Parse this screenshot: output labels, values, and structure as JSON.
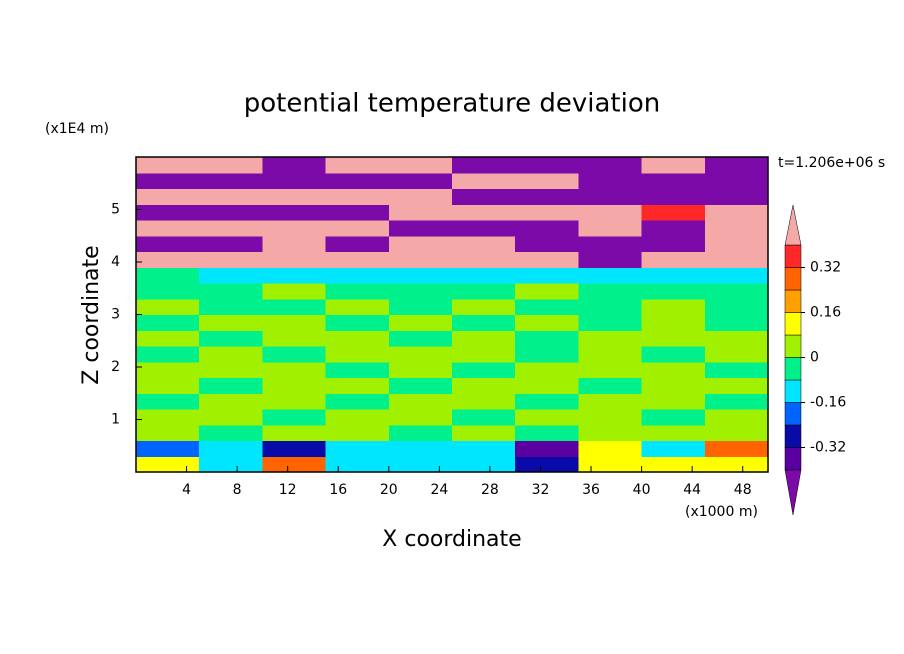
{
  "chart_data": {
    "type": "contour",
    "title": "potential temperature deviation",
    "x_label": "X coordinate",
    "y_label": "Z coordinate",
    "x_unit_label": "(x1000 m)",
    "y_unit_label": "(x1E4 m)",
    "annotation": "t=1.206e+06 s",
    "x": [
      2.5,
      7.5,
      12.5,
      17.5,
      22.5,
      27.5,
      32.5,
      37.5,
      42.5,
      47.5
    ],
    "y": [
      0.15,
      0.45,
      0.75,
      1.05,
      1.35,
      1.65,
      1.95,
      2.25,
      2.55,
      2.85,
      3.15,
      3.45,
      3.75,
      4.05,
      4.35,
      4.65,
      4.95,
      5.25,
      5.55,
      5.85
    ],
    "values": [
      [
        0.1,
        -0.1,
        0.3,
        -0.1,
        -0.1,
        -0.1,
        -0.25,
        0.12,
        0.1,
        0.15
      ],
      [
        -0.2,
        -0.1,
        -0.3,
        -0.1,
        -0.1,
        -0.1,
        -0.35,
        0.1,
        -0.1,
        0.3
      ],
      [
        0.04,
        -0.04,
        0.04,
        0.04,
        -0.04,
        0.04,
        -0.04,
        0.04,
        0.04,
        0.04
      ],
      [
        0.04,
        0.04,
        -0.04,
        0.04,
        0.04,
        -0.04,
        0.04,
        0.04,
        -0.04,
        0.04
      ],
      [
        -0.04,
        0.04,
        0.04,
        -0.04,
        0.04,
        0.04,
        -0.04,
        0.04,
        0.04,
        -0.04
      ],
      [
        0.04,
        -0.04,
        0.04,
        0.04,
        -0.04,
        0.04,
        0.04,
        -0.04,
        0.04,
        0.04
      ],
      [
        0.04,
        0.04,
        0.04,
        -0.04,
        0.04,
        -0.04,
        0.04,
        0.04,
        0.04,
        -0.04
      ],
      [
        -0.04,
        0.04,
        -0.04,
        0.04,
        0.04,
        0.04,
        -0.04,
        0.04,
        -0.04,
        0.04
      ],
      [
        0.04,
        -0.04,
        0.04,
        0.04,
        -0.04,
        0.04,
        -0.04,
        0.04,
        0.04,
        0.04
      ],
      [
        -0.04,
        0.04,
        0.04,
        -0.04,
        0.04,
        -0.04,
        0.04,
        -0.04,
        0.04,
        -0.04
      ],
      [
        0.04,
        -0.04,
        -0.04,
        0.04,
        -0.04,
        0.04,
        -0.04,
        -0.04,
        0.04,
        -0.04
      ],
      [
        -0.04,
        -0.04,
        0.04,
        -0.04,
        -0.04,
        -0.04,
        0.04,
        -0.04,
        -0.04,
        -0.04
      ],
      [
        -0.04,
        -0.1,
        -0.1,
        -0.1,
        -0.1,
        -0.1,
        -0.1,
        -0.1,
        -0.1,
        -0.1
      ],
      [
        0.5,
        0.5,
        0.5,
        0.5,
        0.5,
        0.5,
        0.5,
        -0.5,
        0.5,
        0.5
      ],
      [
        -0.5,
        -0.5,
        0.5,
        -0.5,
        0.5,
        0.5,
        -0.5,
        -0.5,
        -0.5,
        0.5
      ],
      [
        0.5,
        0.5,
        0.5,
        0.5,
        -0.5,
        -0.5,
        -0.5,
        0.5,
        -0.5,
        0.5
      ],
      [
        -0.5,
        -0.5,
        -0.5,
        -0.5,
        0.5,
        0.5,
        0.5,
        0.5,
        0.36,
        0.5
      ],
      [
        0.5,
        0.5,
        0.5,
        0.5,
        0.5,
        -0.5,
        -0.5,
        -0.5,
        -0.5,
        -0.5
      ],
      [
        -0.5,
        -0.5,
        -0.5,
        -0.5,
        -0.5,
        0.5,
        0.5,
        -0.5,
        -0.5,
        -0.5
      ],
      [
        0.5,
        0.5,
        -0.5,
        0.5,
        0.5,
        -0.5,
        -0.5,
        -0.5,
        0.5,
        -0.5
      ]
    ],
    "xlim": [
      0,
      50
    ],
    "ylim": [
      0,
      6
    ],
    "xticks": [
      4,
      8,
      12,
      16,
      20,
      24,
      28,
      32,
      36,
      40,
      44,
      48
    ],
    "yticks": [
      1,
      2,
      3,
      4,
      5
    ],
    "levels": [
      -0.4,
      -0.32,
      -0.24,
      -0.16,
      -0.08,
      0,
      0.08,
      0.16,
      0.24,
      0.32,
      0.4
    ],
    "colors": [
      "#7b0aa8",
      "#5a00a0",
      "#0a0aa8",
      "#0064ff",
      "#00e6ff",
      "#00f08c",
      "#a0f000",
      "#ffff00",
      "#ffa000",
      "#ff6400",
      "#ff2828",
      "#f5a8a8"
    ],
    "colorbar_ticks": [
      0.32,
      0.16,
      0,
      -0.16,
      -0.32
    ]
  }
}
